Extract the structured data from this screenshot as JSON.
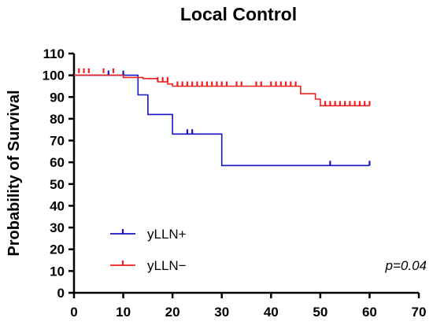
{
  "chart_data": {
    "type": "line",
    "title": "Local Control",
    "xlabel": "",
    "ylabel": "Probability of Survival",
    "xlim": [
      0,
      70
    ],
    "ylim": [
      0,
      110
    ],
    "x_ticks": [
      0,
      10,
      20,
      30,
      40,
      50,
      60,
      70
    ],
    "y_ticks": [
      0,
      10,
      20,
      30,
      40,
      50,
      60,
      70,
      80,
      90,
      100,
      110
    ],
    "grid": false,
    "legend_position": "bottom-left",
    "annotation": "p=0.04",
    "series": [
      {
        "name": "yLLN+",
        "color": "#1414c8",
        "step_x": [
          0,
          13,
          13,
          15,
          15,
          20,
          20,
          30,
          30,
          60
        ],
        "step_y": [
          100,
          100,
          91,
          91,
          82,
          82,
          73,
          73,
          58.5,
          58.5
        ],
        "censor_x": [
          7,
          10,
          23,
          24,
          52,
          60
        ],
        "censor_y": [
          100,
          100,
          73,
          73,
          58.5,
          58.5
        ]
      },
      {
        "name": "yLLN−",
        "color": "#ee2020",
        "step_x": [
          0,
          10,
          10,
          14,
          14,
          17,
          17,
          19,
          19,
          20,
          20,
          46,
          46,
          49,
          49,
          50,
          50,
          60
        ],
        "step_y": [
          100,
          100,
          99,
          99,
          98.5,
          98.5,
          97,
          97,
          96,
          96,
          95,
          95,
          91.5,
          91.5,
          89,
          89,
          86,
          86
        ],
        "censor_x": [
          1,
          2,
          3,
          6,
          8,
          17,
          18,
          19,
          21,
          22,
          23,
          24,
          25,
          26,
          27,
          28,
          29,
          30,
          31,
          33,
          34,
          37,
          38,
          40,
          41,
          42,
          43,
          44,
          45,
          51,
          52,
          53,
          54,
          55,
          56,
          57,
          58,
          59,
          60
        ],
        "censor_y": [
          101,
          101,
          101,
          101,
          101,
          97,
          97,
          97,
          95,
          95,
          95,
          95,
          95,
          95,
          95,
          95,
          95,
          95,
          95,
          95,
          95,
          95,
          95,
          95,
          95,
          95,
          95,
          95,
          95,
          86,
          86,
          86,
          86,
          86,
          86,
          86,
          86,
          86,
          86
        ]
      }
    ]
  }
}
